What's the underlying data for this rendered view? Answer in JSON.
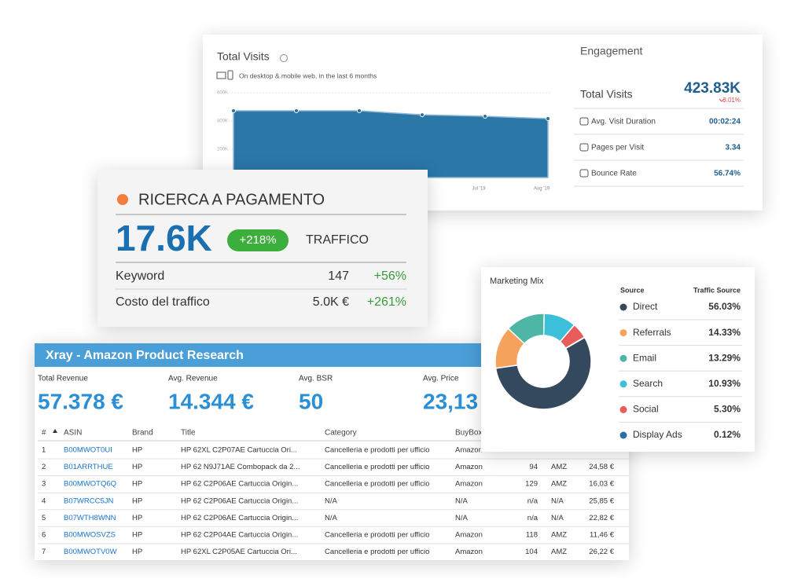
{
  "visits_card": {
    "title": "Total Visits",
    "subtitle": "On desktop & mobile web, in the last 6 months",
    "chart_data": {
      "type": "area",
      "categories": [
        null,
        null,
        null,
        null,
        "Jul '19",
        "Aug '19"
      ],
      "values": [
        472000,
        472000,
        472000,
        444000,
        433000,
        417000
      ],
      "color": "#2a77a8",
      "ylim": [
        0,
        600000
      ],
      "yticks": [
        {
          "value": 200000,
          "label": "200K"
        },
        {
          "value": 400000,
          "label": "400K"
        },
        {
          "value": 600000,
          "label": "600K"
        }
      ],
      "grid": true
    }
  },
  "engagement": {
    "title": "Engagement",
    "total_label": "Total Visits",
    "total_value": "423.83K",
    "total_change": "3.01%",
    "metrics": [
      {
        "label": "Avg. Visit Duration",
        "value": "00:02:24"
      },
      {
        "label": "Pages per Visit",
        "value": "3.34"
      },
      {
        "label": "Bounce Rate",
        "value": "56.74%"
      }
    ]
  },
  "paid_search": {
    "title": "RICERCA A PAGAMENTO",
    "traffic_value": "17.6K",
    "traffic_change": "+218%",
    "traffic_label": "TRAFFICO",
    "rows": [
      {
        "label": "Keyword",
        "value": 147,
        "change": "+56%"
      },
      {
        "label": "Costo del traffico",
        "value": "5.0K €",
        "change": "+261%"
      }
    ]
  },
  "xray": {
    "title": "Xray - Amazon Product Research",
    "summary": [
      {
        "label": "Total Revenue",
        "value": "57.378 €"
      },
      {
        "label": "Avg. Revenue",
        "value": "14.344 €"
      },
      {
        "label": "Avg. BSR",
        "value": 50
      },
      {
        "label": "Avg. Price",
        "value": "23,13"
      }
    ],
    "table": {
      "headers": [
        "#",
        "ASIN",
        "Brand",
        "Title",
        "Category",
        "BuyBox"
      ],
      "rows": [
        [
          1,
          "B00MWOT0UI",
          "HP",
          "HP 62XL C2P07AE Cartuccia Ori...",
          "Cancelleria e prodotti per ufficio",
          "Amazon"
        ],
        [
          2,
          "B01ARRTHUE",
          "HP",
          "HP 62 N9J71AE Combopack da 2...",
          "Cancelleria e prodotti per ufficio",
          "Amazon",
          94,
          "AMZ",
          "24,58 €"
        ],
        [
          3,
          "B00MWOTQ6Q",
          "HP",
          "HP 62 C2P06AE Cartuccia Origin...",
          "Cancelleria e prodotti per ufficio",
          "Amazon",
          129,
          "AMZ",
          "16,03 €"
        ],
        [
          4,
          "B07WRCC5JN",
          "HP",
          "HP 62 C2P06AE Cartuccia Origin...",
          "N/A",
          "N/A",
          "n/a",
          "N/A",
          "25,85 €"
        ],
        [
          5,
          "B07WTH8WNN",
          "HP",
          "HP 62 C2P06AE Cartuccia Origin...",
          "N/A",
          "N/A",
          "n/a",
          "N/A",
          "22,82 €"
        ],
        [
          6,
          "B00MWOSVZS",
          "HP",
          "HP 62 C2P04AE Cartuccia Origin...",
          "Cancelleria e prodotti per ufficio",
          "Amazon",
          118,
          "AMZ",
          "11,46 €"
        ],
        [
          7,
          "B00MWOTV0W",
          "HP",
          "HP 62XL C2P05AE Cartuccia Ori...",
          "Cancelleria e prodotti per ufficio",
          "Amazon",
          104,
          "AMZ",
          "26,22 €"
        ]
      ]
    }
  },
  "marketing_mix": {
    "title": "Marketing Mix",
    "columns": [
      "Source",
      "Traffic Source"
    ],
    "items": [
      {
        "name": "Direct",
        "color": "#34495e",
        "value": 56.03,
        "label": "56.03%"
      },
      {
        "name": "Referrals",
        "color": "#f5a25d",
        "value": 14.33,
        "label": "14.33%"
      },
      {
        "name": "Email",
        "color": "#4db6a5",
        "value": 13.29,
        "label": "13.29%"
      },
      {
        "name": "Search",
        "color": "#3cbfd8",
        "value": 10.93,
        "label": "10.93%"
      },
      {
        "name": "Social",
        "color": "#e85c5c",
        "value": 5.3,
        "label": "5.30%"
      },
      {
        "name": "Display Ads",
        "color": "#2b6ea6",
        "value": 0.12,
        "label": "0.12%"
      }
    ]
  }
}
